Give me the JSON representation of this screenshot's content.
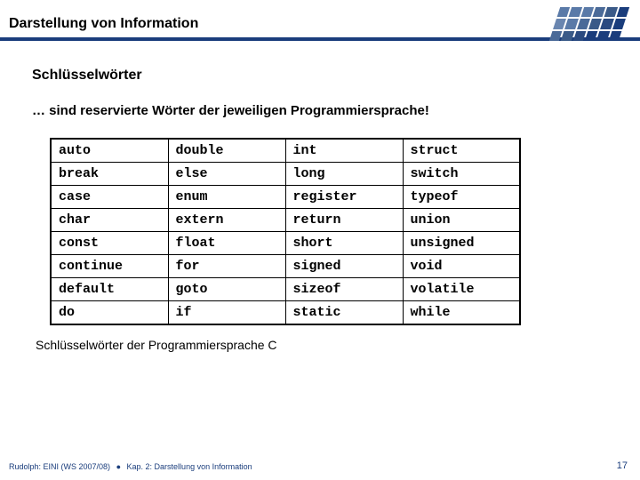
{
  "header": {
    "title": "Darstellung von Information",
    "line_color": "#1a3d7c"
  },
  "logo": {
    "colors": [
      "#5a7aa8",
      "#5a7aa8",
      "#5a7aa8",
      "#4a6a98",
      "#3a5a88",
      "#1a3d7c",
      "#6a86b0",
      "#5a7aa8",
      "#4a6a98",
      "#3a5a88",
      "#2a4a80",
      "#1a3d7c",
      "#4a6a98",
      "#3a5a88",
      "#2a4a80",
      "#1a3d7c",
      "#1a3d7c",
      "#1a3d7c"
    ]
  },
  "subtitle": "Schlüsselwörter",
  "intro": "… sind reservierte Wörter der jeweiligen Programmiersprache!",
  "keyword_table": {
    "columns": 4,
    "rows": [
      [
        "auto",
        "double",
        "int",
        "struct"
      ],
      [
        "break",
        "else",
        "long",
        "switch"
      ],
      [
        "case",
        "enum",
        "register",
        "typeof"
      ],
      [
        "char",
        "extern",
        "return",
        "union"
      ],
      [
        "const",
        "float",
        "short",
        "unsigned"
      ],
      [
        "continue",
        "for",
        "signed",
        "void"
      ],
      [
        "default",
        "goto",
        "sizeof",
        "volatile"
      ],
      [
        "do",
        "if",
        "static",
        "while"
      ]
    ]
  },
  "caption": "Schlüsselwörter der Programmiersprache C",
  "footer": {
    "left_a": "Rudolph: EINI (WS 2007/08)",
    "bullet": "●",
    "left_b": "Kap. 2: Darstellung von Information",
    "pagenum": "17"
  }
}
